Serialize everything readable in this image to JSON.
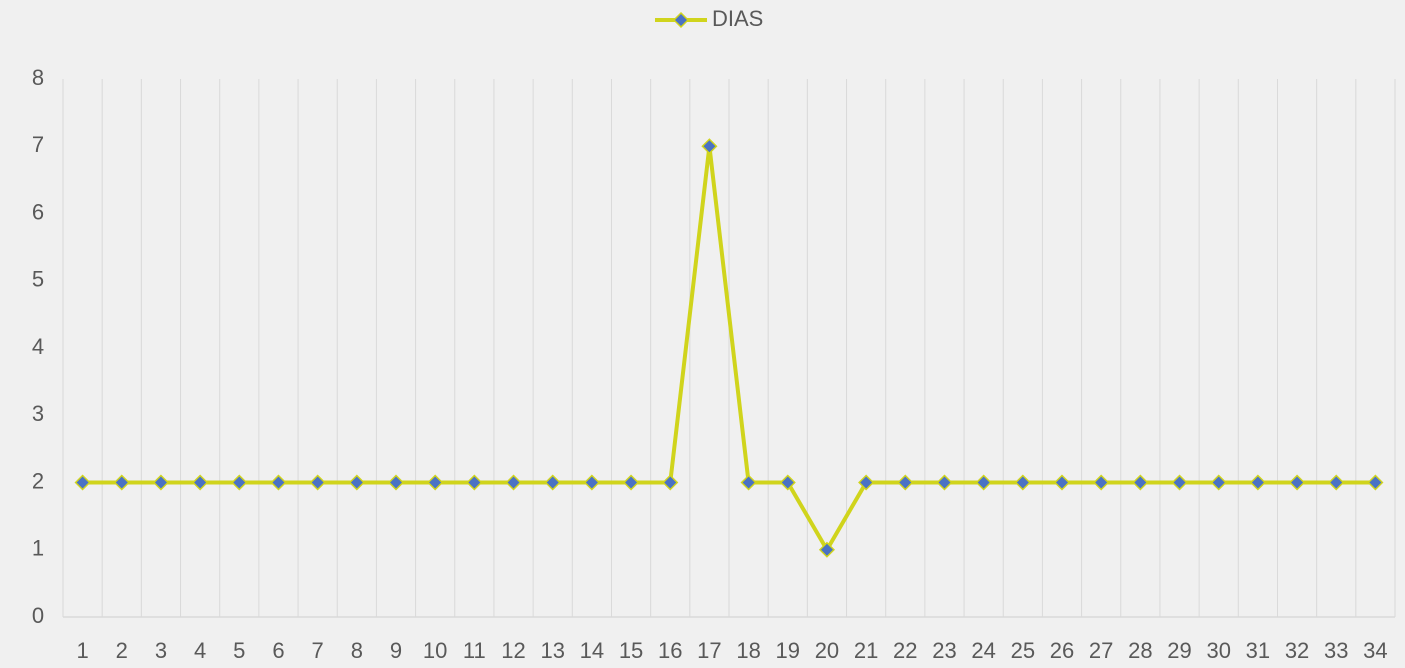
{
  "chart_data": {
    "type": "line",
    "categories": [
      "1",
      "2",
      "3",
      "4",
      "5",
      "6",
      "7",
      "8",
      "9",
      "10",
      "11",
      "12",
      "13",
      "14",
      "15",
      "16",
      "17",
      "18",
      "19",
      "20",
      "21",
      "22",
      "23",
      "24",
      "25",
      "26",
      "27",
      "28",
      "29",
      "30",
      "31",
      "32",
      "33",
      "34"
    ],
    "series": [
      {
        "name": "DIAS",
        "color": "#d0d41c",
        "marker_color": "#4a72c4",
        "values": [
          2,
          2,
          2,
          2,
          2,
          2,
          2,
          2,
          2,
          2,
          2,
          2,
          2,
          2,
          2,
          2,
          7,
          2,
          2,
          1,
          2,
          2,
          2,
          2,
          2,
          2,
          2,
          2,
          2,
          2,
          2,
          2,
          2,
          2
        ]
      }
    ],
    "ylim": [
      0,
      8
    ],
    "yticks": [
      0,
      1,
      2,
      3,
      4,
      5,
      6,
      7,
      8
    ],
    "grid": "vertical",
    "legend": "top"
  }
}
